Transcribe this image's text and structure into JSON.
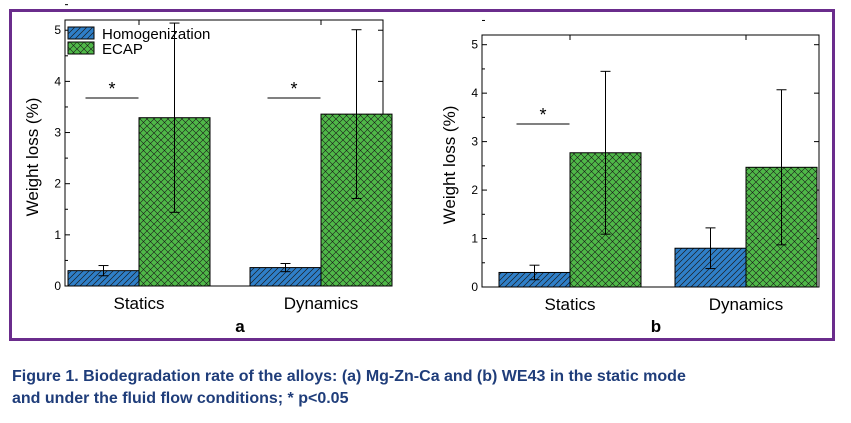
{
  "caption": {
    "line1": "Figure 1. Biodegradation rate of the alloys: (a) Mg-Zn-Ca and (b) WE43 in the static mode",
    "line2": "and under the fluid flow conditions; * p<0.05"
  },
  "colors": {
    "frame": "#6a2c8c",
    "caption": "#1f3d7a",
    "homogenization": "#2f7fc8",
    "ecap": "#4fb848"
  },
  "chart_data": [
    {
      "type": "bar",
      "panel_label": "a",
      "ylabel": "Weight loss (%)",
      "ylim": [
        0,
        5.2
      ],
      "yticks": [
        0,
        1,
        2,
        3,
        4,
        5
      ],
      "categories": [
        "Statics",
        "Dynamics"
      ],
      "legend": [
        "Homogenization",
        "ECAP"
      ],
      "series": [
        {
          "name": "Homogenization",
          "values": [
            0.3,
            0.36
          ],
          "errors": [
            0.1,
            0.08
          ]
        },
        {
          "name": "ECAP",
          "values": [
            3.29,
            3.36
          ],
          "errors": [
            1.85,
            1.65
          ]
        }
      ],
      "significance": [
        {
          "category_index": 0,
          "label": "*"
        },
        {
          "category_index": 1,
          "label": "*"
        }
      ]
    },
    {
      "type": "bar",
      "panel_label": "b",
      "ylabel": "Weight loss (%)",
      "ylim": [
        0,
        5.2
      ],
      "yticks": [
        0,
        1,
        2,
        3,
        4,
        5
      ],
      "categories": [
        "Statics",
        "Dynamics"
      ],
      "series": [
        {
          "name": "Homogenization",
          "values": [
            0.3,
            0.8
          ],
          "errors": [
            0.15,
            0.42
          ]
        },
        {
          "name": "ECAP",
          "values": [
            2.77,
            2.47
          ],
          "errors": [
            1.68,
            1.6
          ]
        }
      ],
      "significance": [
        {
          "category_index": 0,
          "label": "*"
        }
      ]
    }
  ]
}
